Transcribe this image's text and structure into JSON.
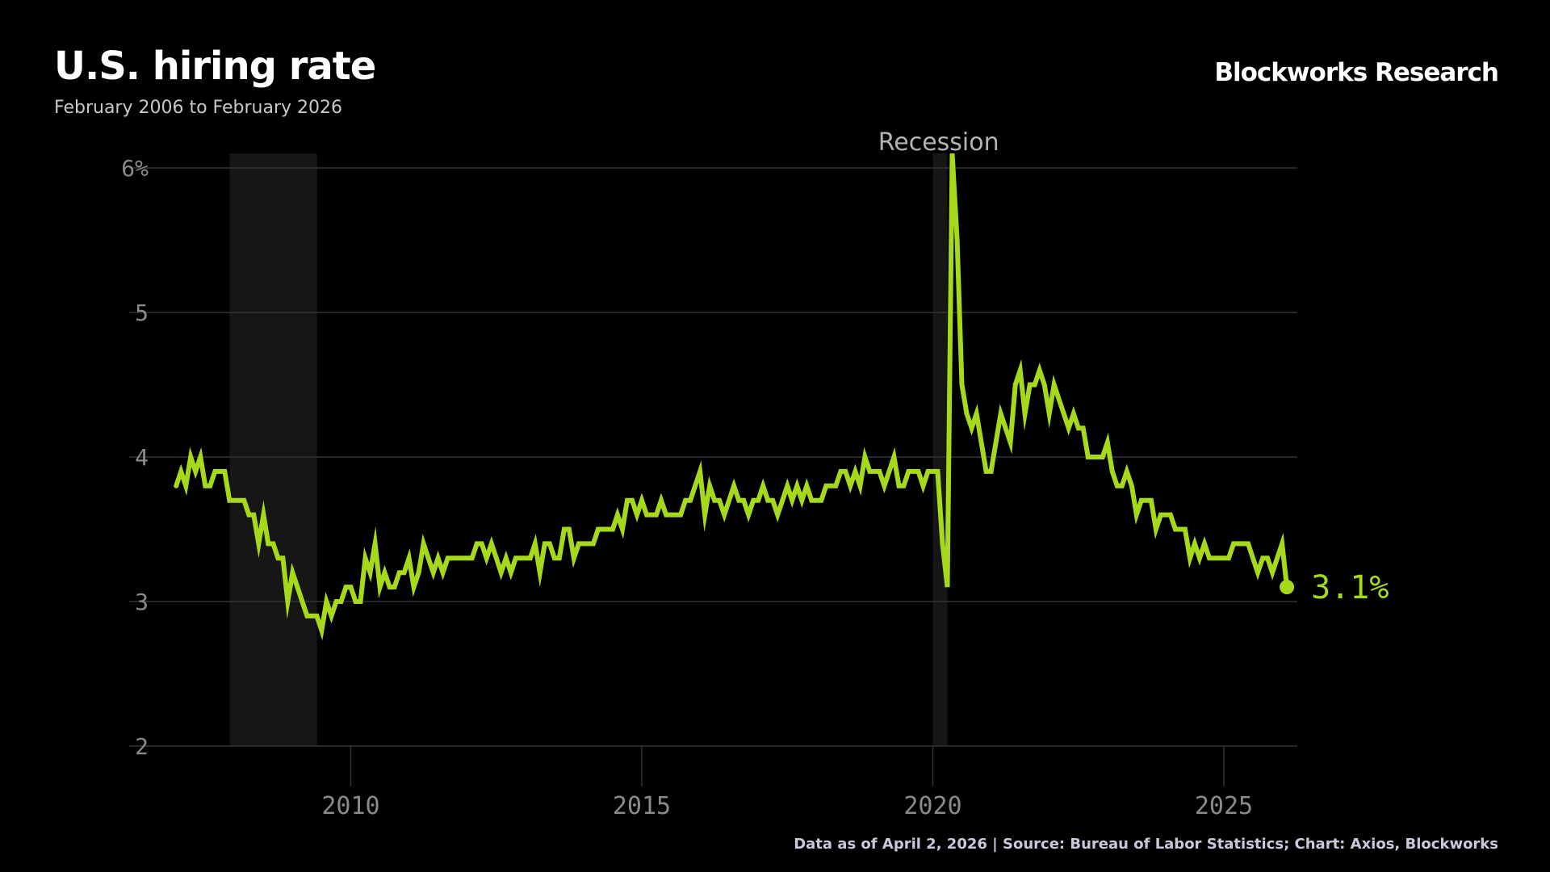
{
  "header": {
    "title": "U.S. hiring rate",
    "subtitle": "February 2006 to February 2026",
    "brand": "Blockworks Research"
  },
  "footer": {
    "source": "Data as of April 2, 2026 | Source:  Bureau of Labor Statistics; Chart: Axios, Blockworks"
  },
  "colors": {
    "line": "#a6d81c",
    "background": "#000000",
    "grid": "#333333",
    "recession_band": "#161616"
  },
  "chart_data": {
    "type": "line",
    "title": "U.S. hiring rate",
    "subtitle": "February 2006 to February 2026",
    "xlabel": "",
    "ylabel": "",
    "ylim": [
      2,
      6
    ],
    "xlim": [
      2006.7,
      2026.3
    ],
    "grid": true,
    "y_ticks": [
      {
        "value": 2,
        "label": "2"
      },
      {
        "value": 3,
        "label": "3"
      },
      {
        "value": 4,
        "label": "4"
      },
      {
        "value": 5,
        "label": "5"
      },
      {
        "value": 6,
        "label": "6%"
      }
    ],
    "x_ticks": [
      {
        "value": 2010,
        "label": "2010"
      },
      {
        "value": 2015,
        "label": "2015"
      },
      {
        "value": 2020,
        "label": "2020"
      },
      {
        "value": 2025,
        "label": "2025"
      }
    ],
    "recessions": [
      {
        "start": 2007.92,
        "end": 2009.42
      },
      {
        "start": 2020.0,
        "end": 2020.25
      }
    ],
    "annotations": [
      {
        "text": "Recession",
        "x": 2020.1,
        "y": 6.2
      }
    ],
    "last_value_label": "3.1%",
    "series": [
      {
        "name": "",
        "points": [
          [
            2007.0,
            3.8
          ],
          [
            2007.083,
            3.9
          ],
          [
            2007.167,
            3.8
          ],
          [
            2007.25,
            4.0
          ],
          [
            2007.333,
            3.9
          ],
          [
            2007.417,
            4.0
          ],
          [
            2007.5,
            3.8
          ],
          [
            2007.583,
            3.8
          ],
          [
            2007.667,
            3.9
          ],
          [
            2007.75,
            3.9
          ],
          [
            2007.833,
            3.9
          ],
          [
            2007.917,
            3.7
          ],
          [
            2008.0,
            3.7
          ],
          [
            2008.083,
            3.7
          ],
          [
            2008.167,
            3.7
          ],
          [
            2008.25,
            3.6
          ],
          [
            2008.333,
            3.6
          ],
          [
            2008.417,
            3.4
          ],
          [
            2008.5,
            3.6
          ],
          [
            2008.583,
            3.4
          ],
          [
            2008.667,
            3.4
          ],
          [
            2008.75,
            3.3
          ],
          [
            2008.833,
            3.3
          ],
          [
            2008.917,
            3.0
          ],
          [
            2009.0,
            3.2
          ],
          [
            2009.083,
            3.1
          ],
          [
            2009.167,
            3.0
          ],
          [
            2009.25,
            2.9
          ],
          [
            2009.333,
            2.9
          ],
          [
            2009.417,
            2.9
          ],
          [
            2009.5,
            2.8
          ],
          [
            2009.583,
            3.0
          ],
          [
            2009.667,
            2.9
          ],
          [
            2009.75,
            3.0
          ],
          [
            2009.833,
            3.0
          ],
          [
            2009.917,
            3.1
          ],
          [
            2010.0,
            3.1
          ],
          [
            2010.083,
            3.0
          ],
          [
            2010.167,
            3.0
          ],
          [
            2010.25,
            3.3
          ],
          [
            2010.333,
            3.2
          ],
          [
            2010.417,
            3.4
          ],
          [
            2010.5,
            3.1
          ],
          [
            2010.583,
            3.2
          ],
          [
            2010.667,
            3.1
          ],
          [
            2010.75,
            3.1
          ],
          [
            2010.833,
            3.2
          ],
          [
            2010.917,
            3.2
          ],
          [
            2011.0,
            3.3
          ],
          [
            2011.083,
            3.1
          ],
          [
            2011.167,
            3.2
          ],
          [
            2011.25,
            3.4
          ],
          [
            2011.333,
            3.3
          ],
          [
            2011.417,
            3.2
          ],
          [
            2011.5,
            3.3
          ],
          [
            2011.583,
            3.2
          ],
          [
            2011.667,
            3.3
          ],
          [
            2011.75,
            3.3
          ],
          [
            2011.833,
            3.3
          ],
          [
            2011.917,
            3.3
          ],
          [
            2012.0,
            3.3
          ],
          [
            2012.083,
            3.3
          ],
          [
            2012.167,
            3.4
          ],
          [
            2012.25,
            3.4
          ],
          [
            2012.333,
            3.3
          ],
          [
            2012.417,
            3.4
          ],
          [
            2012.5,
            3.3
          ],
          [
            2012.583,
            3.2
          ],
          [
            2012.667,
            3.3
          ],
          [
            2012.75,
            3.2
          ],
          [
            2012.833,
            3.3
          ],
          [
            2012.917,
            3.3
          ],
          [
            2013.0,
            3.3
          ],
          [
            2013.083,
            3.3
          ],
          [
            2013.167,
            3.4
          ],
          [
            2013.25,
            3.2
          ],
          [
            2013.333,
            3.4
          ],
          [
            2013.417,
            3.4
          ],
          [
            2013.5,
            3.3
          ],
          [
            2013.583,
            3.3
          ],
          [
            2013.667,
            3.5
          ],
          [
            2013.75,
            3.5
          ],
          [
            2013.833,
            3.3
          ],
          [
            2013.917,
            3.4
          ],
          [
            2014.0,
            3.4
          ],
          [
            2014.083,
            3.4
          ],
          [
            2014.167,
            3.4
          ],
          [
            2014.25,
            3.5
          ],
          [
            2014.333,
            3.5
          ],
          [
            2014.417,
            3.5
          ],
          [
            2014.5,
            3.5
          ],
          [
            2014.583,
            3.6
          ],
          [
            2014.667,
            3.5
          ],
          [
            2014.75,
            3.7
          ],
          [
            2014.833,
            3.7
          ],
          [
            2014.917,
            3.6
          ],
          [
            2015.0,
            3.7
          ],
          [
            2015.083,
            3.6
          ],
          [
            2015.167,
            3.6
          ],
          [
            2015.25,
            3.6
          ],
          [
            2015.333,
            3.7
          ],
          [
            2015.417,
            3.6
          ],
          [
            2015.5,
            3.6
          ],
          [
            2015.583,
            3.6
          ],
          [
            2015.667,
            3.6
          ],
          [
            2015.75,
            3.7
          ],
          [
            2015.833,
            3.7
          ],
          [
            2015.917,
            3.8
          ],
          [
            2016.0,
            3.9
          ],
          [
            2016.083,
            3.6
          ],
          [
            2016.167,
            3.8
          ],
          [
            2016.25,
            3.7
          ],
          [
            2016.333,
            3.7
          ],
          [
            2016.417,
            3.6
          ],
          [
            2016.5,
            3.7
          ],
          [
            2016.583,
            3.8
          ],
          [
            2016.667,
            3.7
          ],
          [
            2016.75,
            3.7
          ],
          [
            2016.833,
            3.6
          ],
          [
            2016.917,
            3.7
          ],
          [
            2017.0,
            3.7
          ],
          [
            2017.083,
            3.8
          ],
          [
            2017.167,
            3.7
          ],
          [
            2017.25,
            3.7
          ],
          [
            2017.333,
            3.6
          ],
          [
            2017.417,
            3.7
          ],
          [
            2017.5,
            3.8
          ],
          [
            2017.583,
            3.7
          ],
          [
            2017.667,
            3.8
          ],
          [
            2017.75,
            3.7
          ],
          [
            2017.833,
            3.8
          ],
          [
            2017.917,
            3.7
          ],
          [
            2018.0,
            3.7
          ],
          [
            2018.083,
            3.7
          ],
          [
            2018.167,
            3.8
          ],
          [
            2018.25,
            3.8
          ],
          [
            2018.333,
            3.8
          ],
          [
            2018.417,
            3.9
          ],
          [
            2018.5,
            3.9
          ],
          [
            2018.583,
            3.8
          ],
          [
            2018.667,
            3.9
          ],
          [
            2018.75,
            3.8
          ],
          [
            2018.833,
            4.0
          ],
          [
            2018.917,
            3.9
          ],
          [
            2019.0,
            3.9
          ],
          [
            2019.083,
            3.9
          ],
          [
            2019.167,
            3.8
          ],
          [
            2019.25,
            3.9
          ],
          [
            2019.333,
            4.0
          ],
          [
            2019.417,
            3.8
          ],
          [
            2019.5,
            3.8
          ],
          [
            2019.583,
            3.9
          ],
          [
            2019.667,
            3.9
          ],
          [
            2019.75,
            3.9
          ],
          [
            2019.833,
            3.8
          ],
          [
            2019.917,
            3.9
          ],
          [
            2020.0,
            3.9
          ],
          [
            2020.083,
            3.9
          ],
          [
            2020.167,
            3.4
          ],
          [
            2020.25,
            3.1
          ],
          [
            2020.333,
            6.1
          ],
          [
            2020.417,
            5.5
          ],
          [
            2020.5,
            4.5
          ],
          [
            2020.583,
            4.3
          ],
          [
            2020.667,
            4.2
          ],
          [
            2020.75,
            4.3
          ],
          [
            2020.833,
            4.1
          ],
          [
            2020.917,
            3.9
          ],
          [
            2021.0,
            3.9
          ],
          [
            2021.083,
            4.1
          ],
          [
            2021.167,
            4.3
          ],
          [
            2021.25,
            4.2
          ],
          [
            2021.333,
            4.1
          ],
          [
            2021.417,
            4.5
          ],
          [
            2021.5,
            4.6
          ],
          [
            2021.583,
            4.3
          ],
          [
            2021.667,
            4.5
          ],
          [
            2021.75,
            4.5
          ],
          [
            2021.833,
            4.6
          ],
          [
            2021.917,
            4.5
          ],
          [
            2022.0,
            4.3
          ],
          [
            2022.083,
            4.5
          ],
          [
            2022.167,
            4.4
          ],
          [
            2022.25,
            4.3
          ],
          [
            2022.333,
            4.2
          ],
          [
            2022.417,
            4.3
          ],
          [
            2022.5,
            4.2
          ],
          [
            2022.583,
            4.2
          ],
          [
            2022.667,
            4.0
          ],
          [
            2022.75,
            4.0
          ],
          [
            2022.833,
            4.0
          ],
          [
            2022.917,
            4.0
          ],
          [
            2023.0,
            4.1
          ],
          [
            2023.083,
            3.9
          ],
          [
            2023.167,
            3.8
          ],
          [
            2023.25,
            3.8
          ],
          [
            2023.333,
            3.9
          ],
          [
            2023.417,
            3.8
          ],
          [
            2023.5,
            3.6
          ],
          [
            2023.583,
            3.7
          ],
          [
            2023.667,
            3.7
          ],
          [
            2023.75,
            3.7
          ],
          [
            2023.833,
            3.5
          ],
          [
            2023.917,
            3.6
          ],
          [
            2024.0,
            3.6
          ],
          [
            2024.083,
            3.6
          ],
          [
            2024.167,
            3.5
          ],
          [
            2024.25,
            3.5
          ],
          [
            2024.333,
            3.5
          ],
          [
            2024.417,
            3.3
          ],
          [
            2024.5,
            3.4
          ],
          [
            2024.583,
            3.3
          ],
          [
            2024.667,
            3.4
          ],
          [
            2024.75,
            3.3
          ],
          [
            2024.833,
            3.3
          ],
          [
            2024.917,
            3.3
          ],
          [
            2025.0,
            3.3
          ],
          [
            2025.083,
            3.3
          ],
          [
            2025.167,
            3.4
          ],
          [
            2025.25,
            3.4
          ],
          [
            2025.333,
            3.4
          ],
          [
            2025.417,
            3.4
          ],
          [
            2025.5,
            3.3
          ],
          [
            2025.583,
            3.2
          ],
          [
            2025.667,
            3.3
          ],
          [
            2025.75,
            3.3
          ],
          [
            2025.833,
            3.2
          ],
          [
            2025.917,
            3.3
          ],
          [
            2026.0,
            3.4
          ],
          [
            2026.083,
            3.1
          ]
        ]
      }
    ]
  }
}
